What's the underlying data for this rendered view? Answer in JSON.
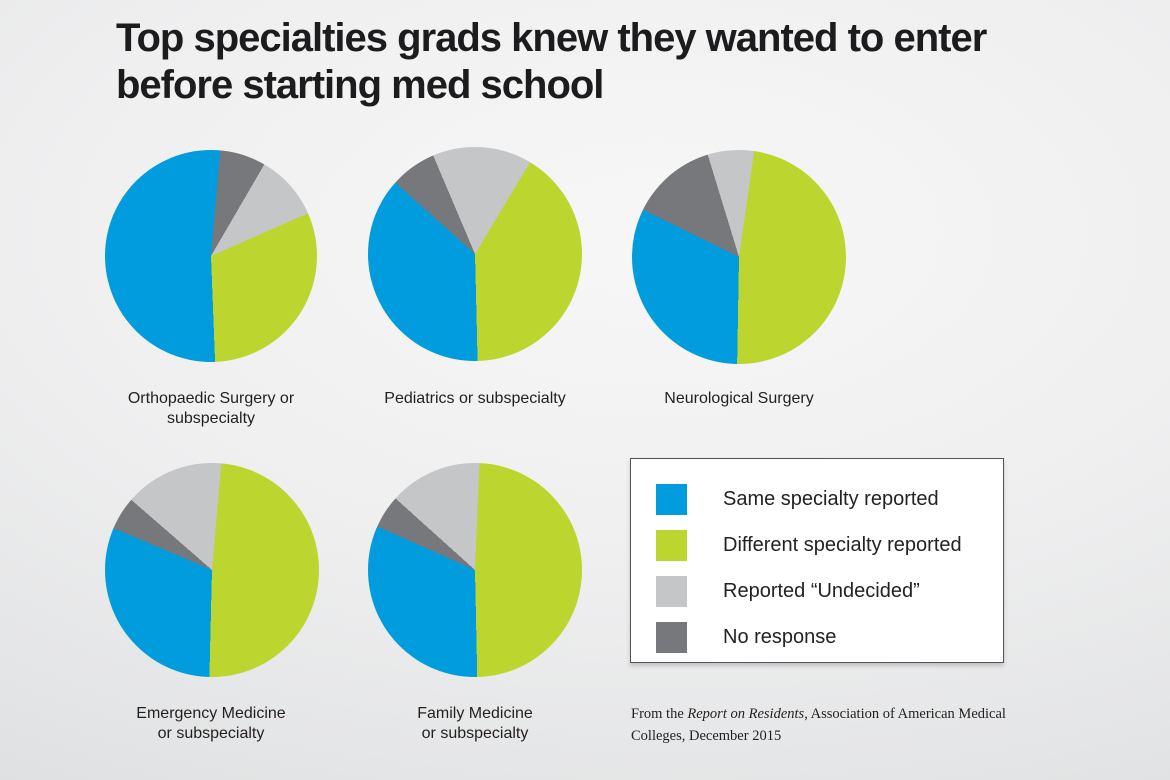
{
  "title": {
    "line1": "Top specialties grads knew they wanted to enter",
    "line2": "before starting med school"
  },
  "colors": {
    "same": "#009CDE",
    "different": "#BDD62F",
    "undecided": "#C4C6C8",
    "no_response": "#77787B"
  },
  "legend": {
    "items": [
      {
        "key": "same",
        "label": "Same specialty reported"
      },
      {
        "key": "different",
        "label": "Different specialty reported"
      },
      {
        "key": "undecided",
        "label": "Reported “Undecided”"
      },
      {
        "key": "no_response",
        "label": "No response"
      }
    ]
  },
  "source": {
    "prefix": "From the ",
    "italic": "Report on Residents",
    "suffix": ", Association of American Medical Colleges, December 2015"
  },
  "chart_data": {
    "type": "pie",
    "title": "Top specialties grads knew they wanted to enter before starting med school",
    "units": "percent",
    "legend_entries": [
      "Same specialty reported",
      "Different specialty reported",
      "Reported “Undecided”",
      "No response"
    ],
    "legend_position": "bottom-right",
    "pies": [
      {
        "label": "Orthopaedic Surgery or subspecialty",
        "label_lines": [
          "Orthopaedic Surgery or",
          "subspecialty"
        ],
        "values": {
          "same": 52,
          "different": 31,
          "undecided": 10,
          "no_response": 7
        },
        "start_angle_deg": 5,
        "draw_order": [
          "no_response",
          "undecided",
          "different",
          "same"
        ]
      },
      {
        "label": "Pediatrics or subspecialty",
        "label_lines": [
          "Pediatrics or subspecialty"
        ],
        "values": {
          "same": 37,
          "different": 41,
          "undecided": 15,
          "no_response": 7
        },
        "start_angle_deg": -23,
        "draw_order": [
          "undecided",
          "different",
          "same",
          "no_response"
        ]
      },
      {
        "label": "Neurological Surgery",
        "label_lines": [
          "Neurological Surgery"
        ],
        "values": {
          "same": 32,
          "different": 48,
          "undecided": 7,
          "no_response": 13
        },
        "start_angle_deg": -17,
        "draw_order": [
          "undecided",
          "different",
          "same",
          "no_response"
        ]
      },
      {
        "label": "Emergency Medicine or subspecialty",
        "label_lines": [
          "Emergency Medicine",
          "or subspecialty"
        ],
        "values": {
          "same": 31,
          "different": 49,
          "undecided": 15,
          "no_response": 5
        },
        "start_angle_deg": -49,
        "draw_order": [
          "undecided",
          "different",
          "same",
          "no_response"
        ]
      },
      {
        "label": "Family Medicine or subspecialty",
        "label_lines": [
          "Family Medicine",
          "or subspecialty"
        ],
        "values": {
          "same": 32,
          "different": 49,
          "undecided": 14,
          "no_response": 5
        },
        "start_angle_deg": -48,
        "draw_order": [
          "undecided",
          "different",
          "same",
          "no_response"
        ]
      }
    ]
  }
}
